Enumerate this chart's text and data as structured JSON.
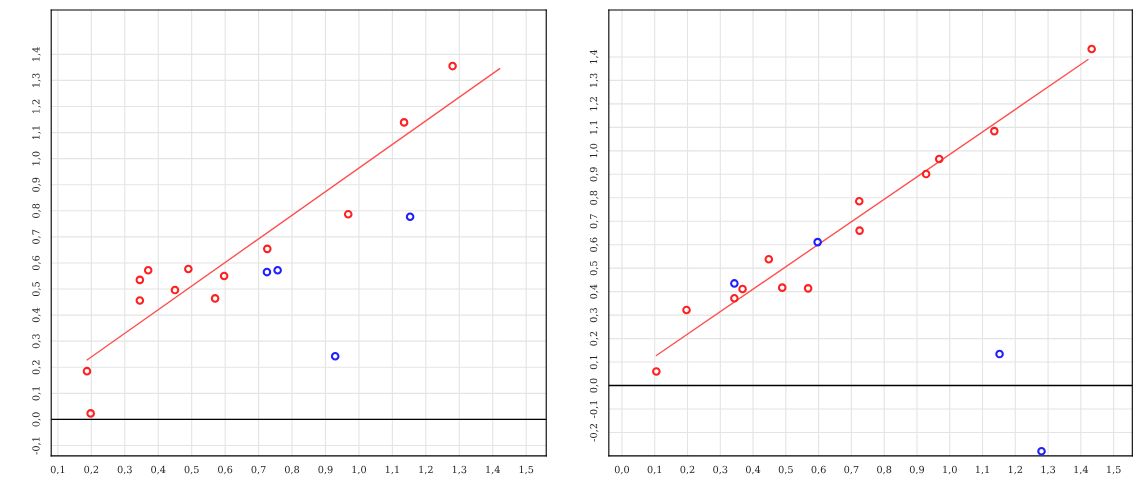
{
  "chart_data": [
    {
      "type": "scatter",
      "xlim": [
        0.08,
        1.56
      ],
      "ylim": [
        -0.14,
        1.57
      ],
      "grid": true,
      "legend": false,
      "xticks": [
        {
          "value": 0.1,
          "label": "0,1"
        },
        {
          "value": 0.2,
          "label": "0,2"
        },
        {
          "value": 0.3,
          "label": "0,3"
        },
        {
          "value": 0.4,
          "label": "0,4"
        },
        {
          "value": 0.5,
          "label": "0,5"
        },
        {
          "value": 0.6,
          "label": "0,6"
        },
        {
          "value": 0.7,
          "label": "0,7"
        },
        {
          "value": 0.8,
          "label": "0,8"
        },
        {
          "value": 0.9,
          "label": "0,9"
        },
        {
          "value": 1.0,
          "label": "1,0"
        },
        {
          "value": 1.1,
          "label": "1,1"
        },
        {
          "value": 1.2,
          "label": "1,2"
        },
        {
          "value": 1.3,
          "label": "1,3"
        },
        {
          "value": 1.4,
          "label": "1,4"
        },
        {
          "value": 1.5,
          "label": "1,5"
        }
      ],
      "yticks": [
        {
          "value": -0.1,
          "label": "-0,1"
        },
        {
          "value": 0.0,
          "label": "0,0"
        },
        {
          "value": 0.1,
          "label": "0,1"
        },
        {
          "value": 0.2,
          "label": "0,2"
        },
        {
          "value": 0.3,
          "label": "0,3"
        },
        {
          "value": 0.4,
          "label": "0,4"
        },
        {
          "value": 0.5,
          "label": "0,5"
        },
        {
          "value": 0.6,
          "label": "0,6"
        },
        {
          "value": 0.7,
          "label": "0,7"
        },
        {
          "value": 0.8,
          "label": "0,8"
        },
        {
          "value": 0.9,
          "label": "0,9"
        },
        {
          "value": 1.0,
          "label": "1,0"
        },
        {
          "value": 1.1,
          "label": "1,1"
        },
        {
          "value": 1.2,
          "label": "1,2"
        },
        {
          "value": 1.3,
          "label": "1,3"
        },
        {
          "value": 1.4,
          "label": "1,4"
        }
      ],
      "ref_lines": [
        {
          "axis": "y",
          "value": 0,
          "color": "#000000"
        }
      ],
      "series": [
        {
          "color": "#ff2020",
          "marker": "circle",
          "x": [
            0.187,
            0.198,
            0.345,
            0.345,
            0.37,
            0.45,
            0.49,
            0.57,
            0.597,
            0.726,
            0.968,
            1.135,
            1.28
          ],
          "values": [
            0.185,
            0.023,
            0.535,
            0.456,
            0.572,
            0.496,
            0.577,
            0.464,
            0.55,
            0.654,
            0.787,
            1.139,
            1.355
          ]
        },
        {
          "color": "#2020ff",
          "marker": "circle",
          "x": [
            0.725,
            0.757,
            0.929,
            1.153
          ],
          "values": [
            0.565,
            0.572,
            0.242,
            0.777
          ]
        },
        {
          "type": "line",
          "color": "#ff5050",
          "x": [
            0.187,
            1.421
          ],
          "values": [
            0.228,
            1.345
          ]
        }
      ]
    },
    {
      "type": "scatter",
      "xlim": [
        -0.04,
        1.557
      ],
      "ylim": [
        -0.3,
        1.6
      ],
      "grid": true,
      "legend": false,
      "xticks": [
        {
          "value": 0.0,
          "label": "0,0"
        },
        {
          "value": 0.1,
          "label": "0,1"
        },
        {
          "value": 0.2,
          "label": "0,2"
        },
        {
          "value": 0.3,
          "label": "0,3"
        },
        {
          "value": 0.4,
          "label": "0,4"
        },
        {
          "value": 0.5,
          "label": "0,5"
        },
        {
          "value": 0.6,
          "label": "0,6"
        },
        {
          "value": 0.7,
          "label": "0,7"
        },
        {
          "value": 0.8,
          "label": "0,8"
        },
        {
          "value": 0.9,
          "label": "0,9"
        },
        {
          "value": 1.0,
          "label": "1,0"
        },
        {
          "value": 1.1,
          "label": "1,1"
        },
        {
          "value": 1.2,
          "label": "1,2"
        },
        {
          "value": 1.3,
          "label": "1,3"
        },
        {
          "value": 1.4,
          "label": "1,4"
        },
        {
          "value": 1.5,
          "label": "1,5"
        }
      ],
      "yticks": [
        {
          "value": -0.2,
          "label": "-0,2"
        },
        {
          "value": -0.1,
          "label": "-0,1"
        },
        {
          "value": 0.0,
          "label": "0,0"
        },
        {
          "value": 0.1,
          "label": "0,1"
        },
        {
          "value": 0.2,
          "label": "0,2"
        },
        {
          "value": 0.3,
          "label": "0,3"
        },
        {
          "value": 0.4,
          "label": "0,4"
        },
        {
          "value": 0.5,
          "label": "0,5"
        },
        {
          "value": 0.6,
          "label": "0,6"
        },
        {
          "value": 0.7,
          "label": "0,7"
        },
        {
          "value": 0.8,
          "label": "0,8"
        },
        {
          "value": 0.9,
          "label": "0,9"
        },
        {
          "value": 1.0,
          "label": "1,0"
        },
        {
          "value": 1.1,
          "label": "1,1"
        },
        {
          "value": 1.2,
          "label": "1,2"
        },
        {
          "value": 1.3,
          "label": "1,3"
        },
        {
          "value": 1.4,
          "label": "1,4"
        }
      ],
      "ref_lines": [
        {
          "axis": "y",
          "value": 0,
          "color": "#000000"
        }
      ],
      "series": [
        {
          "color": "#ff2020",
          "marker": "circle",
          "x": [
            0.105,
            0.197,
            0.343,
            0.368,
            0.448,
            0.489,
            0.568,
            0.724,
            0.725,
            0.928,
            0.968,
            1.136,
            1.433
          ],
          "values": [
            0.06,
            0.322,
            0.372,
            0.411,
            0.538,
            0.417,
            0.414,
            0.785,
            0.66,
            0.901,
            0.965,
            1.084,
            1.434
          ]
        },
        {
          "color": "#2020ff",
          "marker": "circle",
          "x": [
            0.343,
            0.597,
            1.152,
            1.28
          ],
          "values": [
            0.435,
            0.611,
            0.134,
            -0.28
          ]
        },
        {
          "type": "line",
          "color": "#ff5050",
          "x": [
            0.105,
            1.422
          ],
          "values": [
            0.128,
            1.389
          ]
        }
      ]
    }
  ]
}
